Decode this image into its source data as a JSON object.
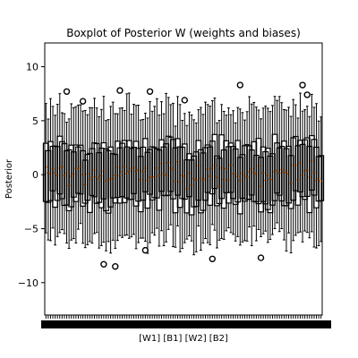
{
  "chart_data": {
    "type": "box",
    "title": "Boxplot of Posterior W (weights and biases)",
    "xlabel": "[W1] [B1] [W2] [B2]",
    "ylabel": "Posterior",
    "ylim": [
      -13,
      12.2
    ],
    "yticks": [
      -10,
      -5,
      0,
      5,
      10
    ],
    "grid": false,
    "legend": "none",
    "n_boxes": 120,
    "typical_box": {
      "q1": -2.5,
      "median": 0,
      "q3": 2.5,
      "whisker_low": -6,
      "whisker_high": 6
    },
    "box_color": "#000000",
    "median_color": "#ff7f0e",
    "notable_outliers": [
      {
        "box": 9,
        "y": 7.7
      },
      {
        "box": 16,
        "y": 6.8
      },
      {
        "box": 25,
        "y": -8.3
      },
      {
        "box": 30,
        "y": -8.5
      },
      {
        "box": 32,
        "y": 7.8
      },
      {
        "box": 43,
        "y": -7.0
      },
      {
        "box": 45,
        "y": 7.7
      },
      {
        "box": 60,
        "y": 6.9
      },
      {
        "box": 72,
        "y": -7.8
      },
      {
        "box": 84,
        "y": 8.3
      },
      {
        "box": 93,
        "y": -7.7
      },
      {
        "box": 111,
        "y": 8.3
      },
      {
        "box": 113,
        "y": 7.4
      }
    ]
  }
}
